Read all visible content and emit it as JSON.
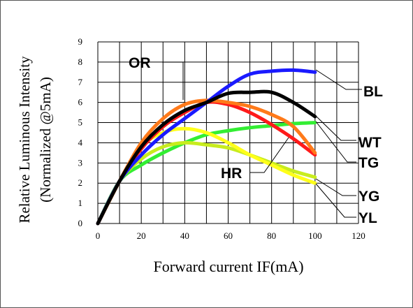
{
  "chart_data": {
    "type": "line",
    "title": "",
    "xlabel": "Forward current IF(mA)",
    "ylabel_line1": "Relative Luminous Intensity",
    "ylabel_line2": "(Normalized @5mA)",
    "xlim": [
      0,
      120
    ],
    "ylim": [
      0,
      9
    ],
    "xticks": [
      "0",
      "20",
      "40",
      "60",
      "80",
      "100",
      "120"
    ],
    "yticks": [
      "0",
      "1",
      "2",
      "3",
      "4",
      "5",
      "6",
      "7",
      "8",
      "9"
    ],
    "grid": true,
    "series": [
      {
        "name": "BL",
        "color": "#1a1aff",
        "x": [
          0,
          10,
          20,
          30,
          40,
          50,
          60,
          70,
          80,
          90,
          100
        ],
        "y": [
          0,
          2.1,
          3.4,
          4.4,
          5.2,
          6.0,
          6.8,
          7.4,
          7.55,
          7.6,
          7.5
        ]
      },
      {
        "name": "WT",
        "color": "#000000",
        "x": [
          0,
          10,
          20,
          30,
          40,
          50,
          60,
          70,
          80,
          90,
          100
        ],
        "y": [
          0,
          2.1,
          3.8,
          4.9,
          5.6,
          6.0,
          6.45,
          6.5,
          6.5,
          6.0,
          5.3
        ]
      },
      {
        "name": "OR",
        "color": "#ff7a1a",
        "x": [
          0,
          10,
          20,
          30,
          40,
          50,
          60,
          70,
          80,
          90,
          100
        ],
        "y": [
          0,
          2.1,
          4.0,
          5.2,
          5.9,
          6.1,
          6.0,
          5.8,
          5.4,
          4.8,
          3.5
        ]
      },
      {
        "name": "HR",
        "color": "#ff1a1a",
        "x": [
          0,
          10,
          20,
          30,
          40,
          50,
          60,
          70,
          80,
          90,
          100
        ],
        "y": [
          0,
          2.1,
          3.7,
          4.8,
          5.5,
          6.0,
          5.9,
          5.5,
          4.9,
          4.2,
          3.4
        ]
      },
      {
        "name": "TG",
        "color": "#33ee33",
        "x": [
          0,
          10,
          20,
          30,
          40,
          50,
          60,
          70,
          80,
          90,
          100
        ],
        "y": [
          0,
          2.1,
          2.9,
          3.5,
          4.0,
          4.4,
          4.6,
          4.75,
          4.85,
          4.95,
          5.0
        ]
      },
      {
        "name": "YG",
        "color": "#c8ec1e",
        "x": [
          0,
          10,
          20,
          30,
          40,
          50,
          60,
          70,
          80,
          90,
          100
        ],
        "y": [
          0,
          2.1,
          3.2,
          3.8,
          4.0,
          3.9,
          3.75,
          3.4,
          3.0,
          2.6,
          2.3
        ]
      },
      {
        "name": "YL",
        "color": "#ffff1a",
        "x": [
          0,
          10,
          20,
          30,
          40,
          50,
          60,
          70,
          80,
          90,
          100
        ],
        "y": [
          0,
          2.1,
          3.8,
          4.5,
          4.7,
          4.5,
          4.0,
          3.4,
          2.9,
          2.4,
          2.0
        ]
      }
    ]
  }
}
